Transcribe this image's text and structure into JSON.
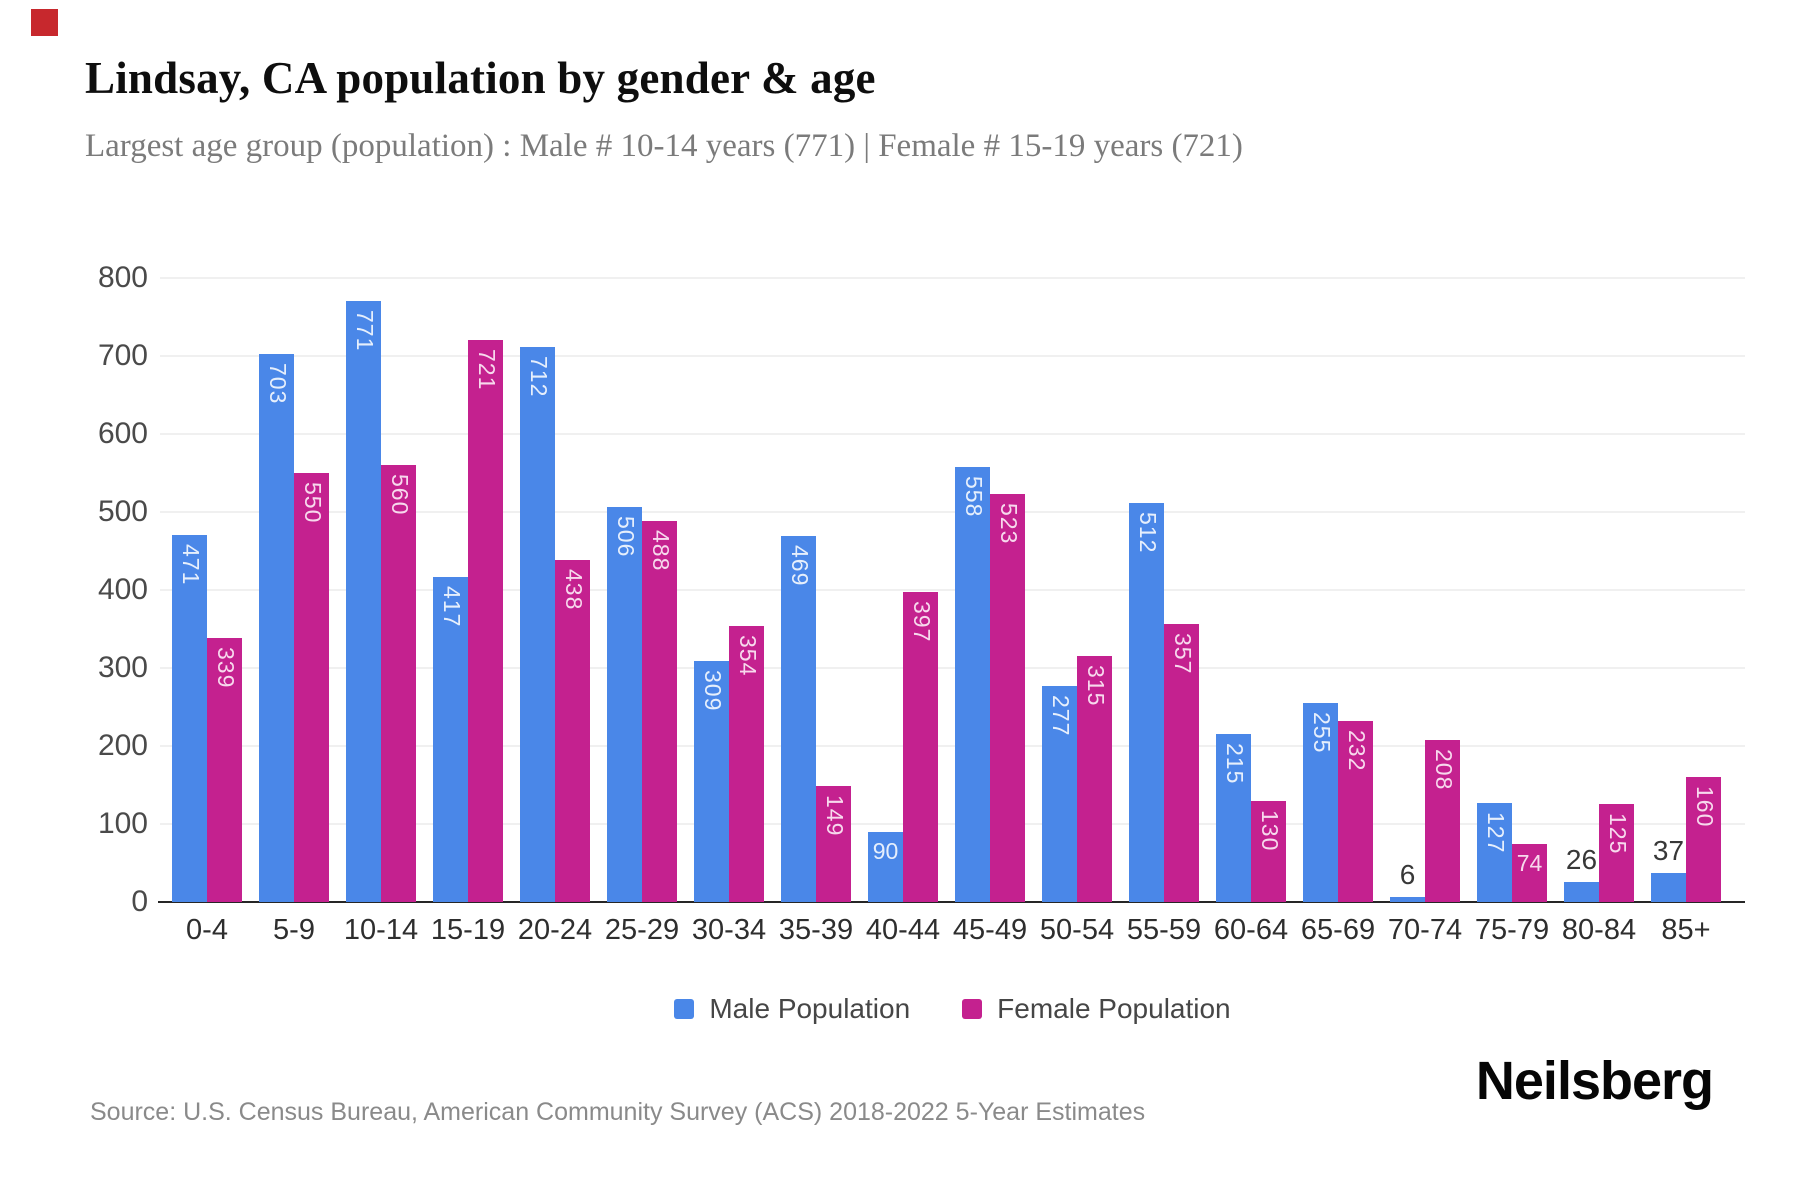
{
  "page": {
    "title": "Lindsay, CA population by gender & age",
    "subtitle": "Largest age group (population) : Male # 10-14 years (771) | Female # 15-19 years (721)",
    "source": "Source: U.S. Census Bureau, American Community Survey (ACS) 2018-2022 5-Year Estimates",
    "brand": "Neilsberg",
    "corner_square_color": "#c7282d"
  },
  "chart_data": {
    "type": "bar",
    "title": "Lindsay, CA population by gender & age",
    "categories": [
      "0-4",
      "5-9",
      "10-14",
      "15-19",
      "20-24",
      "25-29",
      "30-34",
      "35-39",
      "40-44",
      "45-49",
      "50-54",
      "55-59",
      "60-64",
      "65-69",
      "70-74",
      "75-79",
      "80-84",
      "85+"
    ],
    "series": [
      {
        "name": "Male Population",
        "color": "#4a87e8",
        "values": [
          471,
          703,
          771,
          417,
          712,
          506,
          309,
          469,
          90,
          558,
          277,
          512,
          215,
          255,
          6,
          127,
          26,
          37
        ]
      },
      {
        "name": "Female Population",
        "color": "#c4218f",
        "values": [
          339,
          550,
          560,
          721,
          438,
          488,
          354,
          149,
          397,
          523,
          315,
          357,
          130,
          232,
          208,
          74,
          125,
          160
        ]
      }
    ],
    "xlabel": "",
    "ylabel": "",
    "ylim": [
      0,
      800
    ],
    "yticks": [
      0,
      100,
      200,
      300,
      400,
      500,
      600,
      700,
      800
    ],
    "grid": "horizontal",
    "legend_position": "bottom"
  }
}
